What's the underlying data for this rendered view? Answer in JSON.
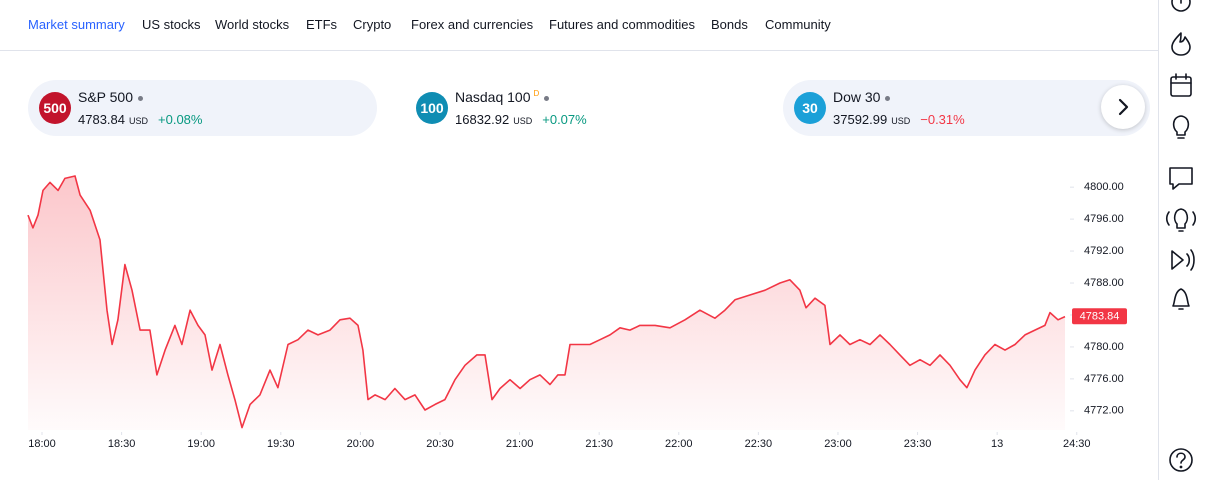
{
  "nav": [
    "Market summary",
    "US stocks",
    "World stocks",
    "ETFs",
    "Crypto",
    "Forex and currencies",
    "Futures and commodities",
    "Bonds",
    "Community"
  ],
  "cards": [
    {
      "badge": "500",
      "name": "S&P 500",
      "value": 4783.84,
      "currency": "USD",
      "change": "+0.08%"
    },
    {
      "badge": "100",
      "name": "Nasdaq 100",
      "flag": "D",
      "value": 16832.92,
      "currency": "USD",
      "change": "+0.07%"
    },
    {
      "badge": "30",
      "name": "Dow 30",
      "value": 37592.99,
      "currency": "USD",
      "change": "−0.31%"
    }
  ],
  "chart_data": {
    "type": "area",
    "color": "#f23645",
    "x": [
      17.912,
      17.943,
      17.975,
      18.006,
      18.05,
      18.101,
      18.144,
      18.207,
      18.239,
      18.302,
      18.364,
      18.408,
      18.44,
      18.477,
      18.521,
      18.565,
      18.616,
      18.678,
      18.722,
      18.773,
      18.835,
      18.879,
      18.93,
      18.98,
      19.024,
      19.068,
      19.118,
      19.168,
      19.212,
      19.256,
      19.307,
      19.369,
      19.432,
      19.482,
      19.545,
      19.608,
      19.671,
      19.734,
      19.809,
      19.872,
      19.935,
      19.985,
      20.016,
      20.048,
      20.092,
      20.155,
      20.217,
      20.28,
      20.343,
      20.406,
      20.469,
      20.531,
      20.594,
      20.657,
      20.732,
      20.783,
      20.827,
      20.877,
      20.94,
      21.003,
      21.065,
      21.128,
      21.191,
      21.241,
      21.285,
      21.317,
      21.379,
      21.442,
      21.505,
      21.568,
      21.631,
      21.693,
      21.756,
      21.851,
      21.945,
      22.039,
      22.133,
      22.227,
      22.29,
      22.353,
      22.447,
      22.542,
      22.636,
      22.698,
      22.761,
      22.799,
      22.856,
      22.918,
      22.95,
      23.013,
      23.075,
      23.138,
      23.201,
      23.264,
      23.327,
      23.389,
      23.452,
      23.515,
      23.578,
      23.641,
      23.704,
      23.766,
      23.81,
      23.861,
      23.923,
      23.986,
      24.049,
      24.112,
      24.175,
      24.237,
      24.3,
      24.332,
      24.382,
      24.426
    ],
    "values": [
      4796.5,
      4794.9,
      4796.5,
      4799.6,
      4800.6,
      4799.6,
      4801.1,
      4801.4,
      4799,
      4797.1,
      4793.4,
      4784.6,
      4780.3,
      4783.4,
      4790.3,
      4787.1,
      4782.1,
      4782.1,
      4776.5,
      4779.6,
      4782.7,
      4780.3,
      4784.6,
      4782.7,
      4781.5,
      4777.1,
      4780.3,
      4776.5,
      4773.4,
      4769.9,
      4772.8,
      4774,
      4777.1,
      4774.9,
      4780.3,
      4780.9,
      4782.1,
      4781.5,
      4782.1,
      4783.4,
      4783.6,
      4782.7,
      4779.6,
      4773.4,
      4774,
      4773.4,
      4774.8,
      4773.4,
      4774,
      4772.1,
      4772.8,
      4773.4,
      4775.9,
      4777.7,
      4779,
      4779,
      4773.4,
      4774.8,
      4775.9,
      4774.8,
      4775.9,
      4776.5,
      4775.3,
      4776.5,
      4776.5,
      4780.3,
      4780.3,
      4780.3,
      4780.9,
      4781.5,
      4782.4,
      4782.1,
      4782.7,
      4782.7,
      4782.4,
      4783.4,
      4784.6,
      4783.6,
      4784.6,
      4785.9,
      4786.5,
      4787.1,
      4788,
      4788.4,
      4787.1,
      4784.9,
      4786.1,
      4785.2,
      4780.3,
      4781.5,
      4780.3,
      4780.9,
      4780.3,
      4781.5,
      4780.3,
      4779,
      4777.7,
      4778.4,
      4777.7,
      4779,
      4777.7,
      4775.9,
      4774.9,
      4777.1,
      4779,
      4780.3,
      4779.6,
      4780.3,
      4781.5,
      4782.1,
      4782.7,
      4784.3,
      4783.4,
      4783.8
    ],
    "last_price": 4783.84,
    "xlim": [
      17.912,
      24.445
    ],
    "ylim": [
      4769.6,
      4803.4
    ],
    "xticks": [
      {
        "value": 18,
        "label": "18:00"
      },
      {
        "value": 18.5,
        "label": "18:30"
      },
      {
        "value": 19,
        "label": "19:00"
      },
      {
        "value": 19.5,
        "label": "19:30"
      },
      {
        "value": 20,
        "label": "20:00"
      },
      {
        "value": 20.5,
        "label": "20:30"
      },
      {
        "value": 21,
        "label": "21:00"
      },
      {
        "value": 21.5,
        "label": "21:30"
      },
      {
        "value": 22,
        "label": "22:00"
      },
      {
        "value": 22.5,
        "label": "22:30"
      },
      {
        "value": 23,
        "label": "23:00"
      },
      {
        "value": 23.5,
        "label": "23:30"
      },
      {
        "value": 24,
        "label": "13"
      },
      {
        "value": 24.5,
        "label": "24:30"
      }
    ],
    "yticks": [
      {
        "value": 4772,
        "label": "4772.00"
      },
      {
        "value": 4776,
        "label": "4776.00"
      },
      {
        "value": 4780,
        "label": "4780.00"
      },
      {
        "value": 4784,
        "label": "4784.00"
      },
      {
        "value": 4788,
        "label": "4788.00"
      },
      {
        "value": 4792,
        "label": "4792.00"
      },
      {
        "value": 4796,
        "label": "4796.00"
      },
      {
        "value": 4800,
        "label": "4800.00"
      }
    ]
  }
}
